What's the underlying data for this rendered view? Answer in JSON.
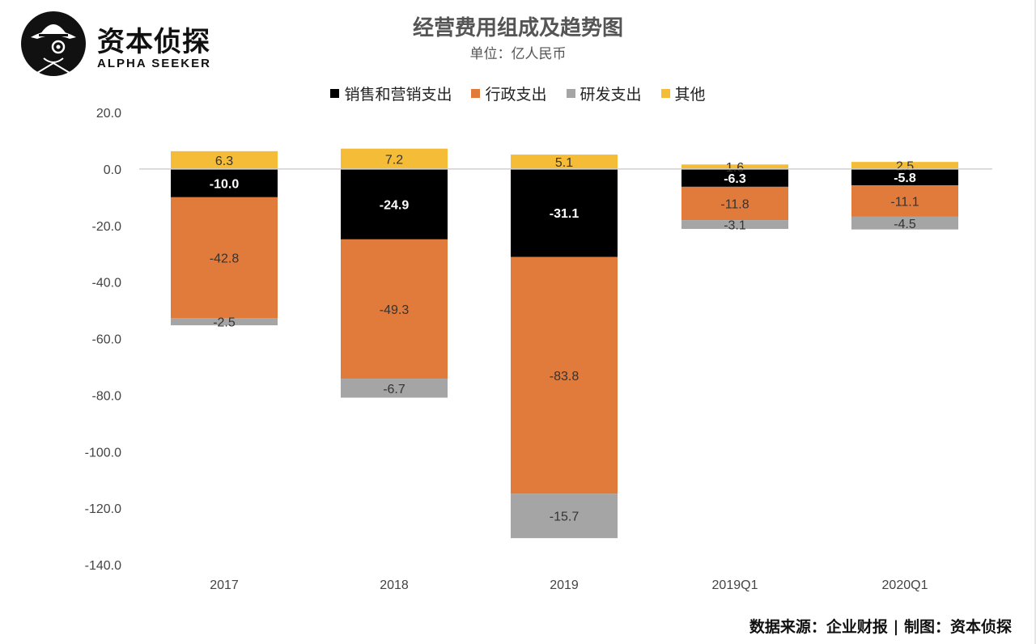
{
  "brand": {
    "name_cn": "资本侦探",
    "name_en": "ALPHA SEEKER"
  },
  "colors": {
    "sales": "#000000",
    "admin": "#e07b3c",
    "rd": "#a5a5a5",
    "other": "#f5bd37"
  },
  "footer": {
    "source": "数据来源：企业财报 | 制图：资本侦探"
  },
  "chart_data": {
    "type": "bar",
    "stacked": true,
    "title": "经营费用组成及趋势图",
    "subtitle": "单位：亿人民币",
    "categories": [
      "2017",
      "2018",
      "2019",
      "2019Q1",
      "2020Q1"
    ],
    "series": [
      {
        "name": "销售和营销支出",
        "key": "sales",
        "values": [
          -10.0,
          -24.9,
          -31.1,
          -6.3,
          -5.8
        ]
      },
      {
        "name": "行政支出",
        "key": "admin",
        "values": [
          -42.8,
          -49.3,
          -83.8,
          -11.8,
          -11.1
        ]
      },
      {
        "name": "研发支出",
        "key": "rd",
        "values": [
          -2.5,
          -6.7,
          -15.7,
          -3.1,
          -4.5
        ]
      },
      {
        "name": "其他",
        "key": "other",
        "values": [
          6.3,
          7.2,
          5.1,
          1.6,
          2.5
        ]
      }
    ],
    "ylim": [
      -140,
      20
    ],
    "yticks": [
      "20.0",
      "0.0",
      "-20.0",
      "-40.0",
      "-60.0",
      "-80.0",
      "-100.0",
      "-120.0",
      "-140.0"
    ],
    "ytick_values": [
      20,
      0,
      -20,
      -40,
      -60,
      -80,
      -100,
      -120,
      -140
    ],
    "grid": false,
    "legend_position": "top"
  }
}
